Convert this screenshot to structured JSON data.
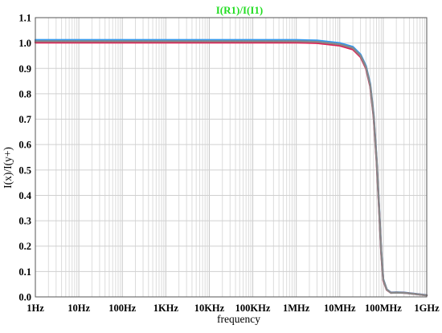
{
  "chart_data": {
    "type": "line",
    "title": "I(R1)/I(I1)",
    "title_color": "#22dd22",
    "xlabel": "frequency",
    "ylabel": "I(x)/I(y+)",
    "x_scale": "log",
    "xlim": [
      1,
      1000000000
    ],
    "ylim": [
      0.0,
      1.1
    ],
    "grid": true,
    "legend": "none",
    "x_ticks": [
      {
        "value": 1,
        "label": "1Hz"
      },
      {
        "value": 10,
        "label": "10Hz"
      },
      {
        "value": 100,
        "label": "100Hz"
      },
      {
        "value": 1000,
        "label": "1KHz"
      },
      {
        "value": 10000,
        "label": "10KHz"
      },
      {
        "value": 100000,
        "label": "100KHz"
      },
      {
        "value": 1000000,
        "label": "1MHz"
      },
      {
        "value": 10000000,
        "label": "10MHz"
      },
      {
        "value": 100000000,
        "label": "100MHz"
      },
      {
        "value": 1000000000,
        "label": "1GHz"
      }
    ],
    "y_ticks": [
      {
        "value": 0.0,
        "label": "0.0"
      },
      {
        "value": 0.1,
        "label": "0.1"
      },
      {
        "value": 0.2,
        "label": "0.2"
      },
      {
        "value": 0.3,
        "label": "0.3"
      },
      {
        "value": 0.4,
        "label": "0.4"
      },
      {
        "value": 0.5,
        "label": "0.5"
      },
      {
        "value": 0.6,
        "label": "0.6"
      },
      {
        "value": 0.7,
        "label": "0.7"
      },
      {
        "value": 0.8,
        "label": "0.8"
      },
      {
        "value": 0.9,
        "label": "0.9"
      },
      {
        "value": 1.0,
        "label": "1.0"
      },
      {
        "value": 1.1,
        "label": "1.1"
      }
    ],
    "series": [
      {
        "color": "#3399ee",
        "x": [
          1,
          10,
          100,
          1000,
          10000,
          100000,
          1000000,
          3000000,
          10000000,
          20000000,
          30000000,
          40000000,
          50000000,
          60000000,
          70000000,
          80000000,
          90000000,
          100000000,
          120000000,
          150000000,
          200000000,
          300000000,
          500000000,
          1000000000
        ],
        "y": [
          1.012,
          1.012,
          1.012,
          1.012,
          1.012,
          1.012,
          1.012,
          1.01,
          1.0,
          0.985,
          0.955,
          0.91,
          0.84,
          0.72,
          0.55,
          0.36,
          0.18,
          0.07,
          0.03,
          0.017,
          0.018,
          0.017,
          0.013,
          0.007
        ]
      },
      {
        "color": "#dd2255",
        "x": [
          1,
          10,
          100,
          1000,
          10000,
          100000,
          1000000,
          3000000,
          10000000,
          20000000,
          30000000,
          40000000,
          50000000,
          60000000,
          70000000,
          80000000,
          90000000,
          100000000,
          120000000,
          150000000,
          200000000,
          300000000,
          500000000,
          1000000000
        ],
        "y": [
          1.002,
          1.002,
          1.002,
          1.002,
          1.002,
          1.002,
          1.002,
          1.0,
          0.99,
          0.975,
          0.945,
          0.9,
          0.83,
          0.71,
          0.54,
          0.35,
          0.17,
          0.065,
          0.028,
          0.016,
          0.017,
          0.016,
          0.012,
          0.006
        ]
      },
      {
        "color": "#888888",
        "x": [
          1,
          10,
          100,
          1000,
          10000,
          100000,
          1000000,
          3000000,
          10000000,
          20000000,
          30000000,
          40000000,
          50000000,
          60000000,
          70000000,
          80000000,
          90000000,
          100000000,
          120000000,
          150000000,
          200000000,
          300000000,
          500000000,
          1000000000
        ],
        "y": [
          1.007,
          1.007,
          1.007,
          1.007,
          1.007,
          1.007,
          1.007,
          1.005,
          0.995,
          0.98,
          0.95,
          0.905,
          0.835,
          0.715,
          0.545,
          0.355,
          0.175,
          0.068,
          0.029,
          0.016,
          0.017,
          0.016,
          0.012,
          0.006
        ]
      }
    ]
  }
}
